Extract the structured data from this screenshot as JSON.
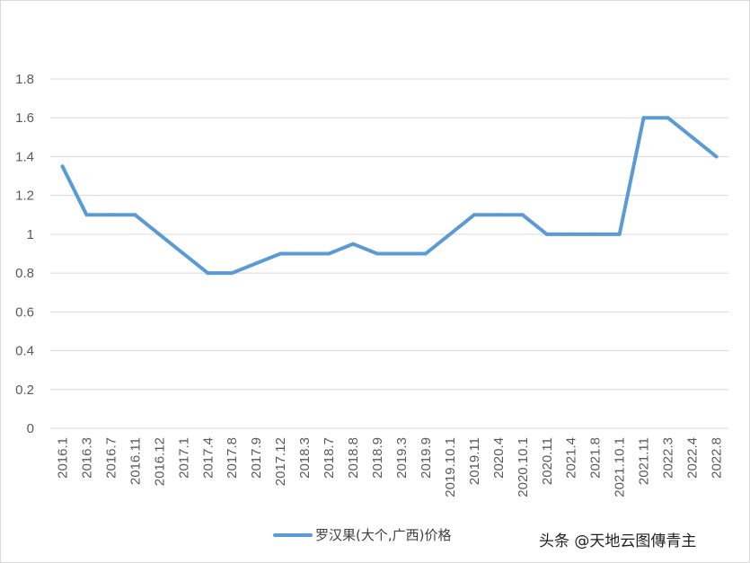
{
  "chart_data": {
    "type": "line",
    "title": "",
    "xlabel": "",
    "ylabel": "",
    "ylim": [
      0,
      1.8
    ],
    "yticks": [
      "0",
      "0.2",
      "0.4",
      "0.6",
      "0.8",
      "1",
      "1.2",
      "1.4",
      "1.6",
      "1.8"
    ],
    "grid": true,
    "legend_position": "bottom",
    "categories": [
      "2016.1",
      "2016.3",
      "2016.7",
      "2016.11",
      "2016.12",
      "2017.1",
      "2017.4",
      "2017.8",
      "2017.9",
      "2017.12",
      "2018.3",
      "2018.7",
      "2018.8",
      "2018.9",
      "2019.3",
      "2019.9",
      "2019.10.1",
      "2019.11",
      "2020.4",
      "2020.10.1",
      "2020.11",
      "2021.4",
      "2021.8",
      "2021.10.1",
      "2021.11",
      "2022.3",
      "2022.4",
      "2022.8"
    ],
    "series": [
      {
        "name": "罗汉果(大个,广西)价格",
        "color": "#5b9bd5",
        "values": [
          1.35,
          1.1,
          1.1,
          1.1,
          1.0,
          0.9,
          0.8,
          0.8,
          0.85,
          0.9,
          0.9,
          0.9,
          0.95,
          0.9,
          0.9,
          0.9,
          1.0,
          1.1,
          1.1,
          1.1,
          1.0,
          1.0,
          1.0,
          1.0,
          1.6,
          1.6,
          1.5,
          1.4
        ]
      }
    ]
  },
  "watermark": "头条 @天地云图傳青主"
}
